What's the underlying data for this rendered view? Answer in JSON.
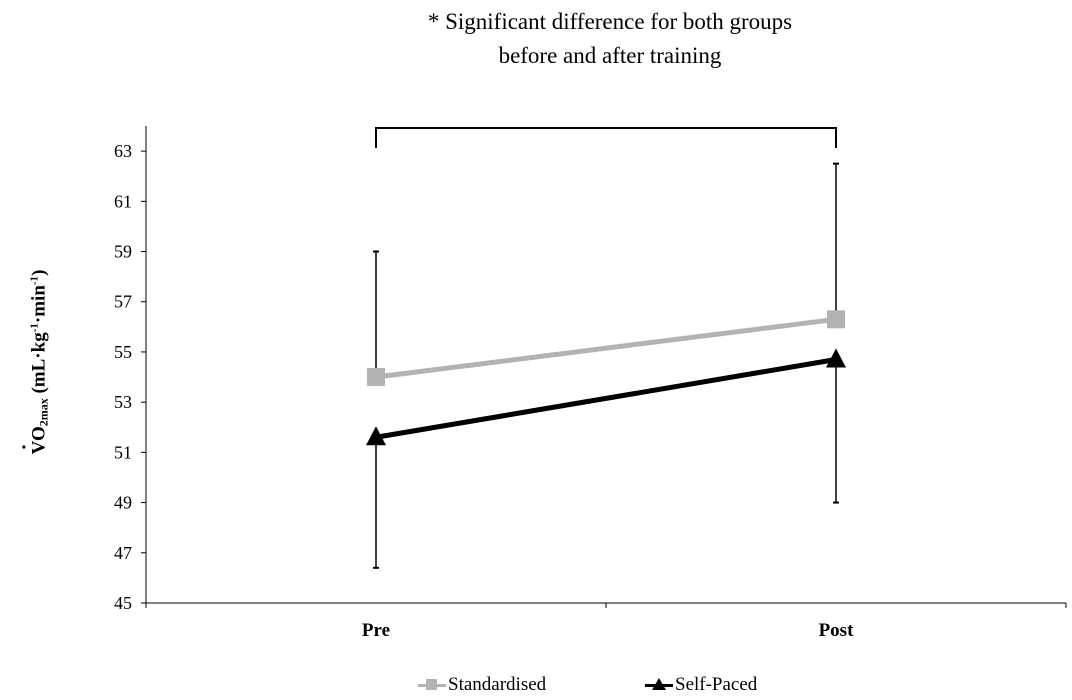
{
  "chart_data": {
    "type": "line",
    "title_lines": [
      "* Significant difference for both groups",
      "before and after training"
    ],
    "ylabel": {
      "pre": "V",
      "main": "O",
      "sub": "2max",
      "unit_open": " (mL·kg",
      "sup1": "-1",
      "mid": "·min",
      "sup2": "-1",
      "unit_close": ")"
    },
    "xlabel": "",
    "categories": [
      "Pre",
      "Post"
    ],
    "ylim": [
      45,
      64
    ],
    "yticks": [
      45,
      47,
      49,
      51,
      53,
      55,
      57,
      59,
      61,
      63
    ],
    "grid": false,
    "legend_position": "bottom",
    "significance_bracket": true,
    "series": [
      {
        "name": "Standardised",
        "values": [
          54.0,
          56.3
        ],
        "error_upper": [
          59.0,
          62.5
        ],
        "error_lower": null,
        "color": "#b3b3b3",
        "marker": "square"
      },
      {
        "name": "Self-Paced",
        "values": [
          51.6,
          54.7
        ],
        "error_upper": null,
        "error_lower": [
          46.4,
          49.0
        ],
        "color": "#000000",
        "marker": "triangle"
      }
    ]
  }
}
